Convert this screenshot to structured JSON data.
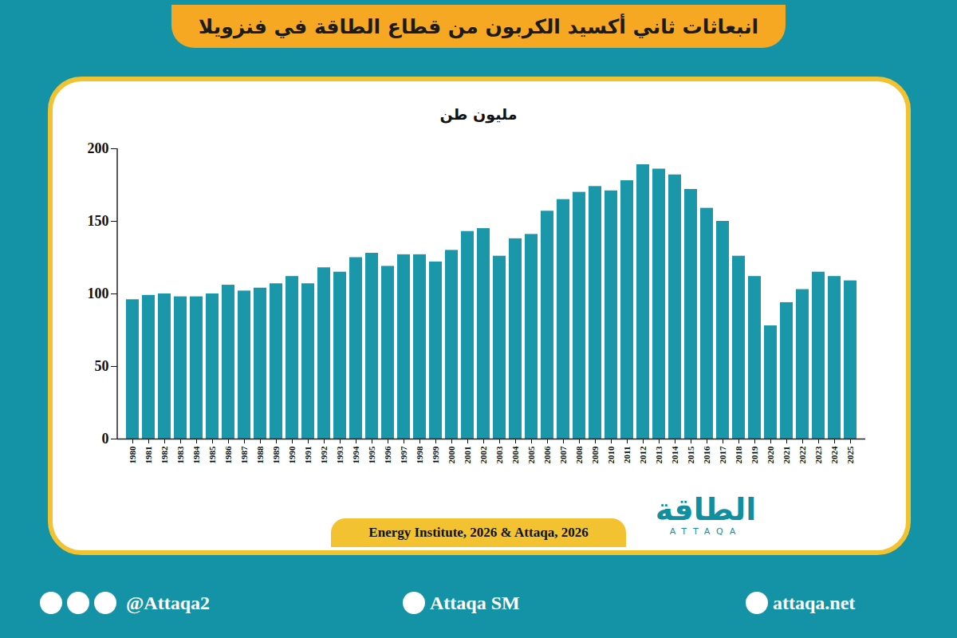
{
  "chart_data": {
    "type": "bar",
    "title": "انبعاثات ثاني أكسيد الكربون من قطاع الطاقة في فنزويلا",
    "y_label": "مليون طن",
    "categories": [
      "1980",
      "1981",
      "1982",
      "1983",
      "1984",
      "1985",
      "1986",
      "1987",
      "1988",
      "1989",
      "1990",
      "1991",
      "1992",
      "1993",
      "1994",
      "1995",
      "1996",
      "1997",
      "1998",
      "1999",
      "2000",
      "2001",
      "2002",
      "2003",
      "2004",
      "2005",
      "2006",
      "2007",
      "2008",
      "2009",
      "2010",
      "2011",
      "2012",
      "2013",
      "2014",
      "2015",
      "2016",
      "2017",
      "2018",
      "2019",
      "2020",
      "2021",
      "2022",
      "2023",
      "2024",
      "2025"
    ],
    "values": [
      96,
      99,
      100,
      98,
      98,
      100,
      106,
      102,
      104,
      107,
      112,
      107,
      118,
      115,
      125,
      128,
      119,
      127,
      127,
      122,
      130,
      143,
      145,
      126,
      138,
      141,
      157,
      165,
      170,
      174,
      171,
      178,
      189,
      186,
      182,
      172,
      159,
      150,
      126,
      112,
      78,
      94,
      103,
      115,
      112,
      109
    ],
    "color": "#1a97a8",
    "ylim": [
      0,
      200
    ],
    "yticks": [
      0,
      50,
      100,
      150,
      200
    ],
    "grid": false,
    "source": "Energy Institute, 2026 & Attaqa, 2026",
    "logo": {
      "text": "الطاقة",
      "subtext": "ATTAQA"
    },
    "footer": {
      "social": "@Attaqa2",
      "youtube": "Attaqa SM",
      "website": "attaqa.net"
    }
  }
}
